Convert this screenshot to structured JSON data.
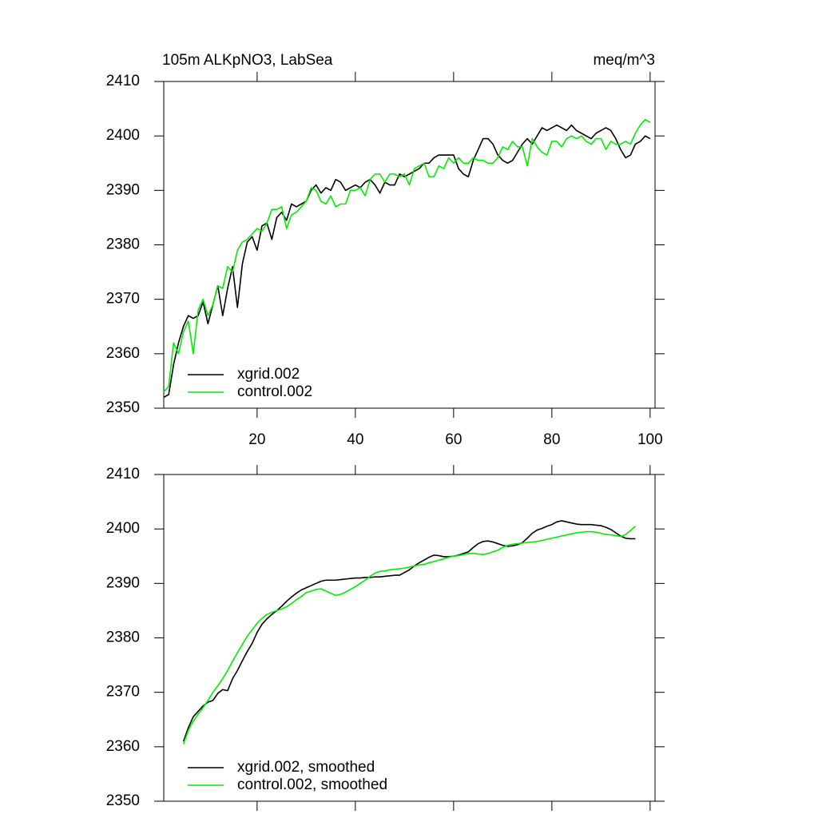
{
  "chart_data": [
    {
      "type": "line",
      "title": "105m ALKpNO3, LabSea",
      "units": "meq/m^3",
      "x": [
        1,
        2,
        3,
        4,
        5,
        6,
        7,
        8,
        9,
        10,
        11,
        12,
        13,
        14,
        15,
        16,
        17,
        18,
        19,
        20,
        21,
        22,
        23,
        24,
        25,
        26,
        27,
        28,
        29,
        30,
        31,
        32,
        33,
        34,
        35,
        36,
        37,
        38,
        39,
        40,
        41,
        42,
        43,
        44,
        45,
        46,
        47,
        48,
        49,
        50,
        51,
        52,
        53,
        54,
        55,
        56,
        57,
        58,
        59,
        60,
        61,
        62,
        63,
        64,
        65,
        66,
        67,
        68,
        69,
        70,
        71,
        72,
        73,
        74,
        75,
        76,
        77,
        78,
        79,
        80,
        81,
        82,
        83,
        84,
        85,
        86,
        87,
        88,
        89,
        90,
        91,
        92,
        93,
        94,
        95,
        96,
        97,
        98,
        99,
        100
      ],
      "series": [
        {
          "name": "xgrid.002",
          "color": "#000000",
          "values": [
            2352,
            2352.5,
            2358,
            2362,
            2365,
            2367,
            2366.5,
            2367,
            2369.5,
            2365.5,
            2369,
            2372.5,
            2367,
            2372,
            2376,
            2368.5,
            2376.5,
            2380.5,
            2381.5,
            2379,
            2383.5,
            2384,
            2381,
            2385,
            2386,
            2384.5,
            2387.5,
            2387,
            2387.5,
            2388,
            2390,
            2391,
            2389.5,
            2390.5,
            2390,
            2392,
            2391.5,
            2390,
            2390.5,
            2391,
            2390.5,
            2391.5,
            2392,
            2391,
            2389.5,
            2391.5,
            2391,
            2391,
            2393,
            2392.5,
            2393,
            2393.5,
            2394,
            2395,
            2395,
            2396,
            2396.5,
            2396.5,
            2396.5,
            2396.5,
            2394,
            2393,
            2392.5,
            2395.5,
            2397.5,
            2399.5,
            2399.5,
            2398.5,
            2396.5,
            2395.5,
            2395,
            2395.5,
            2397,
            2398.5,
            2399.5,
            2398.5,
            2400,
            2401.5,
            2401,
            2401.5,
            2402,
            2401.5,
            2401,
            2402,
            2401,
            2400.5,
            2400,
            2399.5,
            2400.5,
            2401,
            2401.5,
            2401,
            2399.5,
            2397.5,
            2396,
            2396.5,
            2398.5,
            2399,
            2400,
            2399.5
          ]
        },
        {
          "name": "control.002",
          "color": "#00ee00",
          "values": [
            2353,
            2354,
            2362,
            2360,
            2364,
            2366,
            2360,
            2368,
            2370,
            2367,
            2369,
            2372.5,
            2372,
            2376,
            2375,
            2379,
            2380.5,
            2381,
            2382,
            2383,
            2382.5,
            2384,
            2386.5,
            2386.5,
            2387,
            2383,
            2385.5,
            2386,
            2387,
            2388,
            2390.5,
            2390,
            2388,
            2387.5,
            2389,
            2387,
            2387.5,
            2387.5,
            2390,
            2390,
            2390.5,
            2389,
            2392,
            2393,
            2393,
            2391.5,
            2393,
            2393,
            2392.5,
            2393,
            2391,
            2394,
            2394.5,
            2395,
            2392.5,
            2392.5,
            2394.5,
            2394,
            2396,
            2395,
            2396,
            2395,
            2395,
            2396,
            2395.5,
            2395.5,
            2395,
            2395,
            2396,
            2398,
            2397.5,
            2399,
            2398,
            2398,
            2394.5,
            2399.5,
            2398,
            2397,
            2396.5,
            2399,
            2399,
            2398,
            2399.5,
            2400,
            2399.5,
            2400,
            2399,
            2398.5,
            2399.5,
            2399.5,
            2397.5,
            2399,
            2398.5,
            2398.5,
            2399,
            2398.5,
            2400.5,
            2402,
            2403,
            2402.5
          ]
        }
      ],
      "xlim": [
        1,
        101
      ],
      "xticks": [
        20,
        40,
        60,
        80,
        100
      ],
      "xtick_labels": true,
      "ylim": [
        2350,
        2410
      ],
      "yticks": [
        2350,
        2360,
        2370,
        2380,
        2390,
        2400,
        2410
      ],
      "legend": "lower left",
      "grid": false
    },
    {
      "type": "line",
      "x": [
        1,
        2,
        3,
        4,
        5,
        6,
        7,
        8,
        9,
        10,
        11,
        12,
        13,
        14,
        15,
        16,
        17,
        18,
        19,
        20,
        21,
        22,
        23,
        24,
        25,
        26,
        27,
        28,
        29,
        30,
        31,
        32,
        33,
        34,
        35,
        36,
        37,
        38,
        39,
        40,
        41,
        42,
        43,
        44,
        45,
        46,
        47,
        48,
        49,
        50,
        51,
        52,
        53,
        54,
        55,
        56,
        57,
        58,
        59,
        60,
        61,
        62,
        63,
        64,
        65,
        66,
        67,
        68,
        69,
        70,
        71,
        72,
        73,
        74,
        75,
        76,
        77,
        78,
        79,
        80,
        81,
        82,
        83,
        84,
        85,
        86,
        87,
        88,
        89,
        90,
        91,
        92,
        93,
        94,
        95,
        96,
        97,
        98,
        99,
        100
      ],
      "series": [
        {
          "name": "xgrid.002, smoothed",
          "color": "#000000",
          "values": [
            null,
            null,
            null,
            null,
            2361,
            2363.5,
            2365.5,
            2366.5,
            2367.5,
            2368.2,
            2368.5,
            2369.8,
            2370.5,
            2370.3,
            2372.5,
            2374,
            2375.8,
            2377.5,
            2379,
            2381,
            2382.5,
            2383.5,
            2384.3,
            2385,
            2385.8,
            2386.7,
            2387.5,
            2388.2,
            2388.8,
            2389.2,
            2389.6,
            2390,
            2390.4,
            2390.6,
            2390.6,
            2390.6,
            2390.7,
            2390.8,
            2390.9,
            2391,
            2391,
            2391.1,
            2391.1,
            2391.2,
            2391.2,
            2391.3,
            2391.4,
            2391.5,
            2391.5,
            2392,
            2392.5,
            2393.2,
            2393.8,
            2394.3,
            2394.8,
            2395.2,
            2395.1,
            2394.9,
            2394.9,
            2395,
            2395.2,
            2395.5,
            2395.8,
            2396.6,
            2397.3,
            2397.7,
            2397.8,
            2397.6,
            2397.3,
            2397,
            2396.8,
            2396.9,
            2397.1,
            2397.5,
            2398.3,
            2399.2,
            2399.8,
            2400.1,
            2400.5,
            2400.8,
            2401.3,
            2401.5,
            2401.3,
            2401.1,
            2400.9,
            2400.8,
            2400.8,
            2400.8,
            2400.7,
            2400.6,
            2400.3,
            2399.9,
            2399.3,
            2398.7,
            2398.3,
            2398.2,
            2398.2,
            null,
            null,
            null
          ]
        },
        {
          "name": "control.002, smoothed",
          "color": "#00ee00",
          "values": [
            null,
            null,
            null,
            null,
            2360.5,
            2363,
            2364.7,
            2366,
            2367.2,
            2368.5,
            2370,
            2371.2,
            2372.5,
            2374,
            2375.7,
            2377.3,
            2378.8,
            2380.3,
            2381.5,
            2382.7,
            2383.6,
            2384.3,
            2384.7,
            2385,
            2385.3,
            2385.7,
            2386.3,
            2387,
            2387.6,
            2388.3,
            2388.6,
            2388.9,
            2389,
            2388.6,
            2388.2,
            2387.8,
            2388,
            2388.4,
            2388.9,
            2389.4,
            2390,
            2390.6,
            2391.3,
            2391.9,
            2392.2,
            2392.3,
            2392.5,
            2392.6,
            2392.7,
            2392.8,
            2393,
            2393.2,
            2393.4,
            2393.5,
            2393.8,
            2394,
            2394.3,
            2394.5,
            2394.8,
            2395,
            2395.1,
            2395.3,
            2395.5,
            2395.5,
            2395.4,
            2395.3,
            2395.5,
            2395.8,
            2396.1,
            2396.6,
            2397,
            2397.2,
            2397.3,
            2397.4,
            2397.5,
            2397.6,
            2397.7,
            2397.9,
            2398.1,
            2398.3,
            2398.5,
            2398.7,
            2398.9,
            2399.1,
            2399.3,
            2399.4,
            2399.5,
            2399.5,
            2399.4,
            2399.2,
            2399,
            2398.9,
            2398.8,
            2398.6,
            2399,
            2399.7,
            2400.5,
            null,
            null,
            null
          ]
        }
      ],
      "xlim": [
        1,
        101
      ],
      "xticks": [
        20,
        40,
        60,
        80,
        100
      ],
      "xtick_labels": false,
      "ylim": [
        2350,
        2410
      ],
      "yticks": [
        2350,
        2360,
        2370,
        2380,
        2390,
        2400,
        2410
      ],
      "legend": "lower left",
      "grid": false
    }
  ]
}
